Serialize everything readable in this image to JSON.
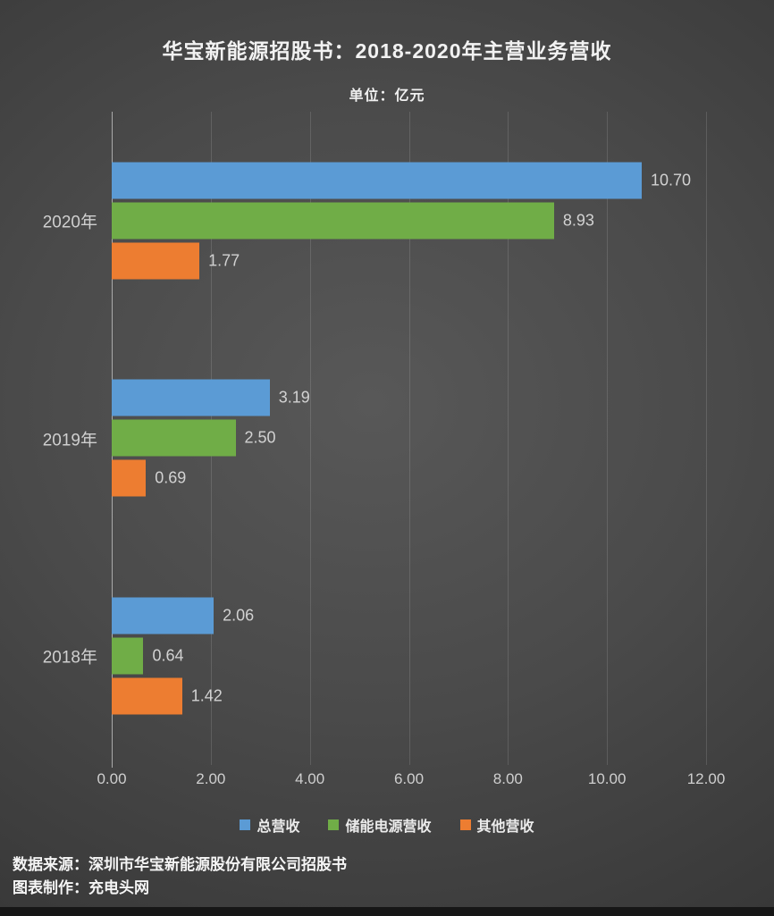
{
  "header": {
    "title": "华宝新能源招股书：2018-2020年主营业务营收",
    "unit_label": "单位：亿元"
  },
  "chart_data": {
    "type": "bar",
    "orientation": "horizontal",
    "title": "华宝新能源招股书：2018-2020年主营业务营收",
    "unit_label": "单位：亿元",
    "categories": [
      "2020年",
      "2019年",
      "2018年"
    ],
    "series": [
      {
        "name": "总营收",
        "color": "#5B9BD5",
        "values": [
          10.7,
          3.19,
          2.06
        ],
        "labels": [
          "10.70",
          "3.19",
          "2.06"
        ]
      },
      {
        "name": "储能电源营收",
        "color": "#70AD47",
        "values": [
          8.93,
          2.5,
          0.64
        ],
        "labels": [
          "8.93",
          "2.50",
          "0.64"
        ]
      },
      {
        "name": "其他营收",
        "color": "#ED7D31",
        "values": [
          1.77,
          0.69,
          1.42
        ],
        "labels": [
          "1.77",
          "0.69",
          "1.42"
        ]
      }
    ],
    "x_ticks": [
      "0.00",
      "2.00",
      "4.00",
      "6.00",
      "8.00",
      "10.00",
      "12.00"
    ],
    "xlim": [
      0,
      12
    ],
    "grid": true,
    "legend_position": "bottom"
  },
  "footer": {
    "source": "数据来源：深圳市华宝新能源股份有限公司招股书",
    "credit": "图表制作：充电头网"
  },
  "colors": {
    "series_blue": "#5B9BD5",
    "series_green": "#70AD47",
    "series_orange": "#ED7D31",
    "background_center": "#585858",
    "background_edge": "#2E2E2E",
    "label_gray": "#CFCFCF",
    "text_white": "#F2F2F2"
  }
}
